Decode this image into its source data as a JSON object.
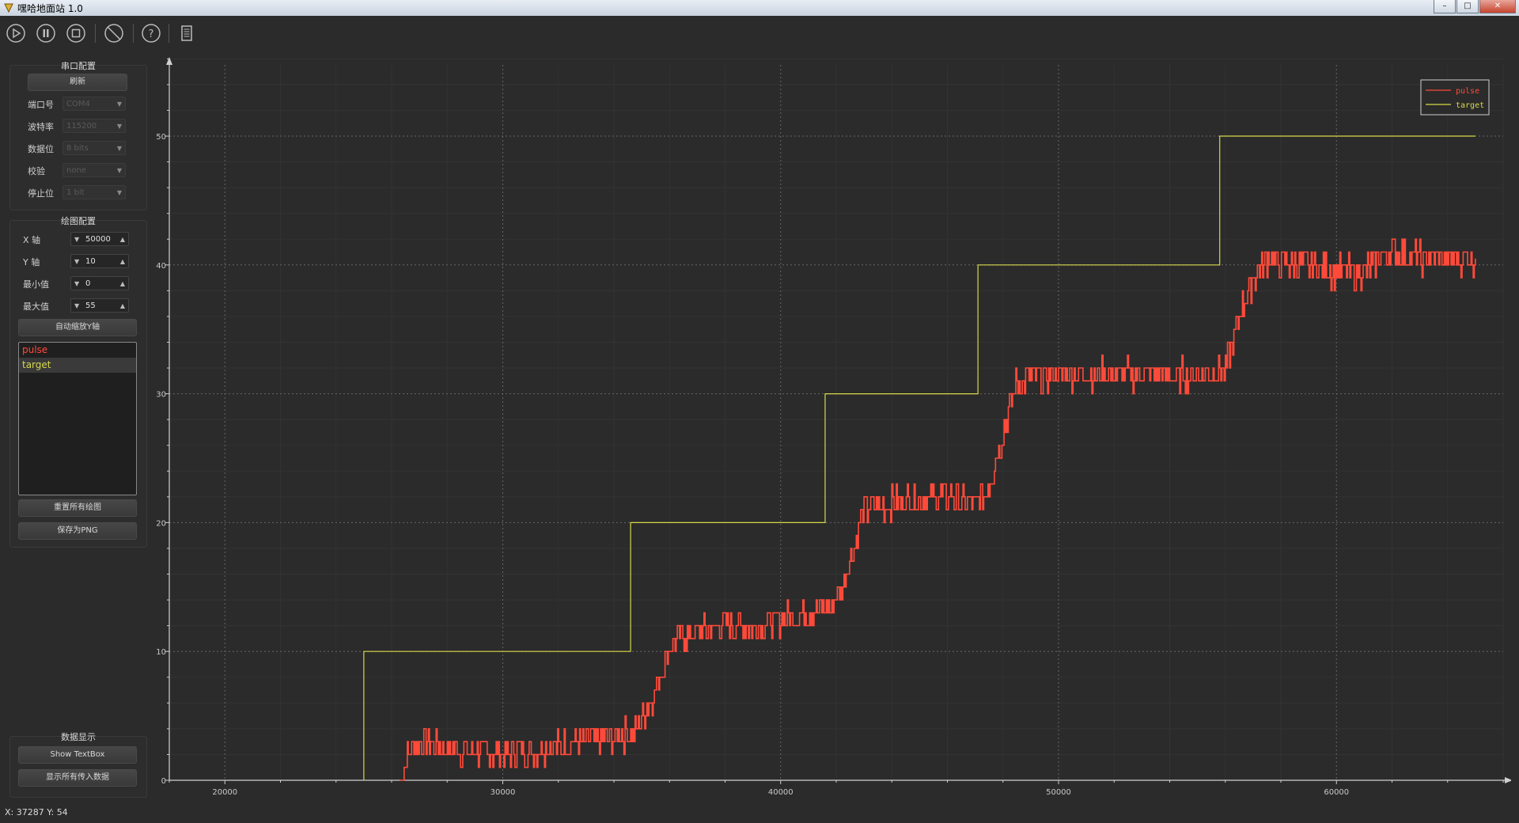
{
  "window": {
    "title": "嘿哈地面站 1.0",
    "min": "–",
    "max": "□",
    "close": "✕"
  },
  "toolbar": [
    {
      "name": "play-icon"
    },
    {
      "name": "pause-icon"
    },
    {
      "name": "stop-icon"
    },
    {
      "name": "forbid-icon"
    },
    {
      "name": "help-icon"
    },
    {
      "name": "document-icon"
    }
  ],
  "serial": {
    "title": "串口配置",
    "refresh": "刷新",
    "rows": [
      {
        "label": "端口号",
        "value": "COM4"
      },
      {
        "label": "波特率",
        "value": "115200"
      },
      {
        "label": "数据位",
        "value": "8 bits"
      },
      {
        "label": "校验",
        "value": "none"
      },
      {
        "label": "停止位",
        "value": "1 bit"
      }
    ]
  },
  "plot": {
    "title": "绘图配置",
    "rows": [
      {
        "label": "X 轴",
        "value": "50000"
      },
      {
        "label": "Y 轴",
        "value": "10"
      },
      {
        "label": "最小值",
        "value": "0"
      },
      {
        "label": "最大值",
        "value": "55"
      }
    ],
    "autoscale": "自动缩放Y轴",
    "curves": [
      {
        "name": "pulse",
        "color": "#ff4a3a"
      },
      {
        "name": "target",
        "color": "#d8d84a"
      }
    ],
    "reset": "重置所有绘图",
    "save": "保存为PNG"
  },
  "display": {
    "title": "数据显示",
    "show_textbox": "Show TextBox",
    "show_all": "显示所有传入数据"
  },
  "status": {
    "coords": "X: 37287 Y: 54"
  },
  "chart_data": {
    "type": "line",
    "xlim": [
      18000,
      66000
    ],
    "ylim": [
      0,
      50
    ],
    "xticks": [
      "20000",
      "30000",
      "40000",
      "50000",
      "60000"
    ],
    "yticks": [
      "0",
      "10",
      "20",
      "30",
      "40",
      "50"
    ],
    "grid": true,
    "legend_position": "top-right",
    "series": [
      {
        "name": "target",
        "color": "#d8d84a",
        "steps": [
          [
            25000,
            0
          ],
          [
            25000,
            10
          ],
          [
            34600,
            10
          ],
          [
            34600,
            20
          ],
          [
            41600,
            20
          ],
          [
            41600,
            30
          ],
          [
            47100,
            30
          ],
          [
            47100,
            40
          ],
          [
            55800,
            40
          ],
          [
            55800,
            50
          ],
          [
            65000,
            50
          ]
        ]
      },
      {
        "name": "pulse",
        "color": "#ff4a3a",
        "points": [
          [
            26300,
            0
          ],
          [
            26600,
            2
          ],
          [
            27000,
            3
          ],
          [
            28000,
            2.5
          ],
          [
            30000,
            2
          ],
          [
            31500,
            2.5
          ],
          [
            33000,
            3
          ],
          [
            34400,
            3.5
          ],
          [
            34800,
            4
          ],
          [
            35300,
            6
          ],
          [
            35800,
            9
          ],
          [
            36200,
            11
          ],
          [
            37000,
            11.5
          ],
          [
            38000,
            12
          ],
          [
            39000,
            12
          ],
          [
            40000,
            12.5
          ],
          [
            41000,
            13
          ],
          [
            41800,
            13.5
          ],
          [
            42200,
            15
          ],
          [
            42600,
            18
          ],
          [
            43000,
            21
          ],
          [
            44000,
            21.5
          ],
          [
            45000,
            22
          ],
          [
            46000,
            22
          ],
          [
            47000,
            21.5
          ],
          [
            47500,
            23
          ],
          [
            48000,
            27
          ],
          [
            48500,
            31
          ],
          [
            50000,
            31.5
          ],
          [
            52000,
            31.5
          ],
          [
            54000,
            31.5
          ],
          [
            55600,
            31.5
          ],
          [
            56000,
            32
          ],
          [
            56500,
            36
          ],
          [
            57000,
            39
          ],
          [
            57500,
            40.5
          ],
          [
            58500,
            40
          ],
          [
            60000,
            39.5
          ],
          [
            61000,
            39.5
          ],
          [
            62000,
            41
          ],
          [
            63000,
            40.5
          ],
          [
            65000,
            40.5
          ]
        ]
      }
    ]
  }
}
